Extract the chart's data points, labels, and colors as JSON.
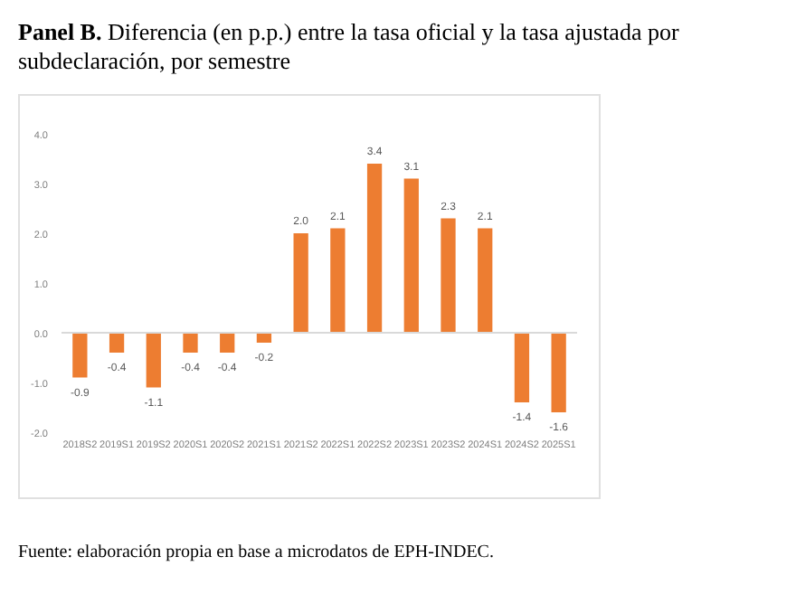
{
  "chart_data": {
    "type": "bar",
    "title": "Panel B. Diferencia (en p.p.) entre la tasa oficial y la tasa ajustada por subdeclaración, por semestre",
    "categories": [
      "2018S2",
      "2019S1",
      "2019S2",
      "2020S1",
      "2020S2",
      "2021S1",
      "2021S2",
      "2022S1",
      "2022S2",
      "2023S1",
      "2023S2",
      "2024S1",
      "2024S2",
      "2025S1"
    ],
    "values": [
      -0.9,
      -0.4,
      -1.1,
      -0.4,
      -0.4,
      -0.2,
      2.0,
      2.1,
      3.4,
      3.1,
      2.3,
      2.1,
      -1.4,
      -1.6
    ],
    "value_labels": [
      "-0.9",
      "-0.4",
      "-1.1",
      "-0.4",
      "-0.4",
      "-0.2",
      "2.0",
      "2.1",
      "3.4",
      "3.1",
      "2.3",
      "2.1",
      "-1.4",
      "-1.6"
    ],
    "color": "#ed7d31",
    "grid": false,
    "ylim": [
      -2,
      4
    ],
    "yticks": [
      {
        "value": -2,
        "label": "-2.0"
      },
      {
        "value": -1,
        "label": "-1.0"
      },
      {
        "value": 0,
        "label": "0.0"
      },
      {
        "value": 1,
        "label": "1.0"
      },
      {
        "value": 2,
        "label": "2.0"
      },
      {
        "value": 3,
        "label": "3.0"
      },
      {
        "value": 4,
        "label": "4.0"
      }
    ],
    "ref_lines": [
      {
        "axis": "y",
        "value": 0,
        "color": "#d9d9d9"
      }
    ],
    "annotations": [
      "Fuente: elaboración propia en base a microdatos de EPH-INDEC."
    ]
  }
}
